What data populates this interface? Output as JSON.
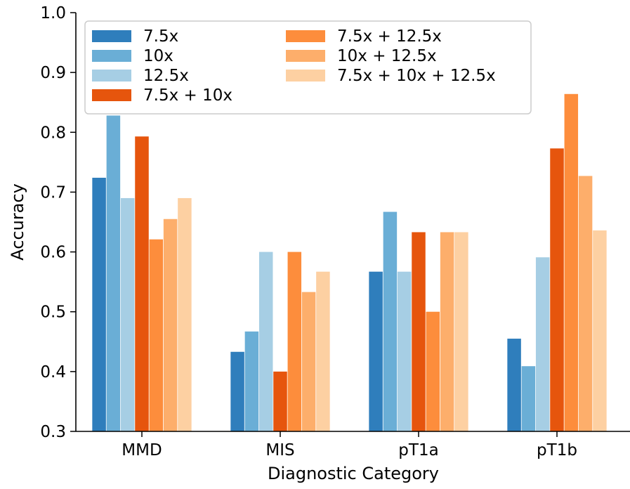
{
  "chart_data": {
    "type": "bar",
    "title": "",
    "xlabel": "Diagnostic Category",
    "ylabel": "Accuracy",
    "ylim": [
      0.3,
      1.0
    ],
    "yticks": [
      "0.3",
      "0.4",
      "0.5",
      "0.6",
      "0.7",
      "0.8",
      "0.9",
      "1.0"
    ],
    "categories": [
      "MMD",
      "MIS",
      "pT1a",
      "pT1b"
    ],
    "legend_position": "top-left",
    "grid": false,
    "series": [
      {
        "name": "7.5x",
        "color": "#2f7ebc",
        "values": [
          0.724,
          0.433,
          0.567,
          0.455
        ]
      },
      {
        "name": "10x",
        "color": "#6aaed6",
        "values": [
          0.828,
          0.467,
          0.667,
          0.409
        ]
      },
      {
        "name": "12.5x",
        "color": "#a6cee4",
        "values": [
          0.69,
          0.6,
          0.567,
          0.591
        ]
      },
      {
        "name": "7.5x + 10x",
        "color": "#e6550d",
        "values": [
          0.793,
          0.4,
          0.633,
          0.773
        ]
      },
      {
        "name": "7.5x + 12.5x",
        "color": "#fd8d3c",
        "values": [
          0.621,
          0.6,
          0.5,
          0.864
        ]
      },
      {
        "name": "10x + 12.5x",
        "color": "#fdae6b",
        "values": [
          0.655,
          0.533,
          0.633,
          0.727
        ]
      },
      {
        "name": "7.5x + 10x + 12.5x",
        "color": "#fdd0a2",
        "values": [
          0.69,
          0.567,
          0.633,
          0.636
        ]
      }
    ]
  }
}
